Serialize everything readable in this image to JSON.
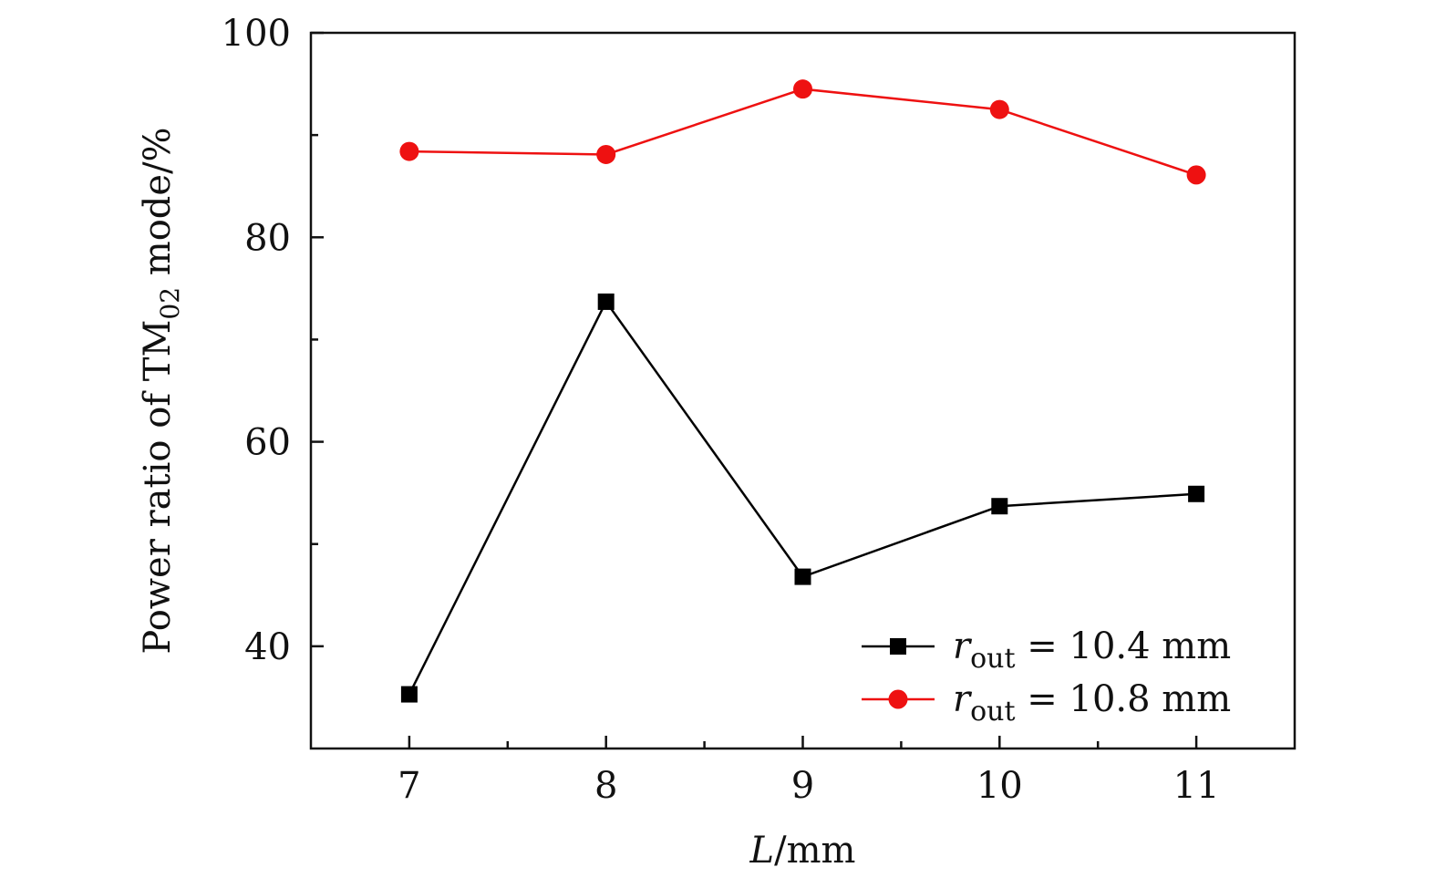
{
  "chart_data": {
    "type": "line",
    "title": "",
    "xlabel": {
      "var": "L",
      "unit": "/mm"
    },
    "ylabel": {
      "prefix": "Power ratio of TM",
      "sub": "02",
      "suffix": " mode/%"
    },
    "xlim": [
      6.5,
      11.5
    ],
    "ylim": [
      30,
      100
    ],
    "x_ticks": [
      7,
      8,
      9,
      10,
      11
    ],
    "x_minor_ticks": [
      7.5,
      8.5,
      9.5,
      10.5
    ],
    "y_ticks": [
      40,
      60,
      80,
      100
    ],
    "y_minor_ticks": [
      50,
      70,
      90
    ],
    "x": [
      7,
      8,
      9,
      10,
      11
    ],
    "grid": false,
    "legend_position": "bottom-right",
    "series": [
      {
        "name": "r_out = 10.4 mm",
        "legend_var": "r",
        "legend_sub": "out",
        "legend_rest": " = 10.4 mm",
        "values": [
          35.3,
          73.7,
          46.8,
          53.7,
          54.9
        ],
        "color": "#000000",
        "marker": "square"
      },
      {
        "name": "r_out = 10.8 mm",
        "legend_var": "r",
        "legend_sub": "out",
        "legend_rest": " = 10.8 mm",
        "values": [
          88.4,
          88.1,
          94.5,
          92.5,
          86.1
        ],
        "color": "#ee1111",
        "marker": "circle"
      }
    ]
  }
}
